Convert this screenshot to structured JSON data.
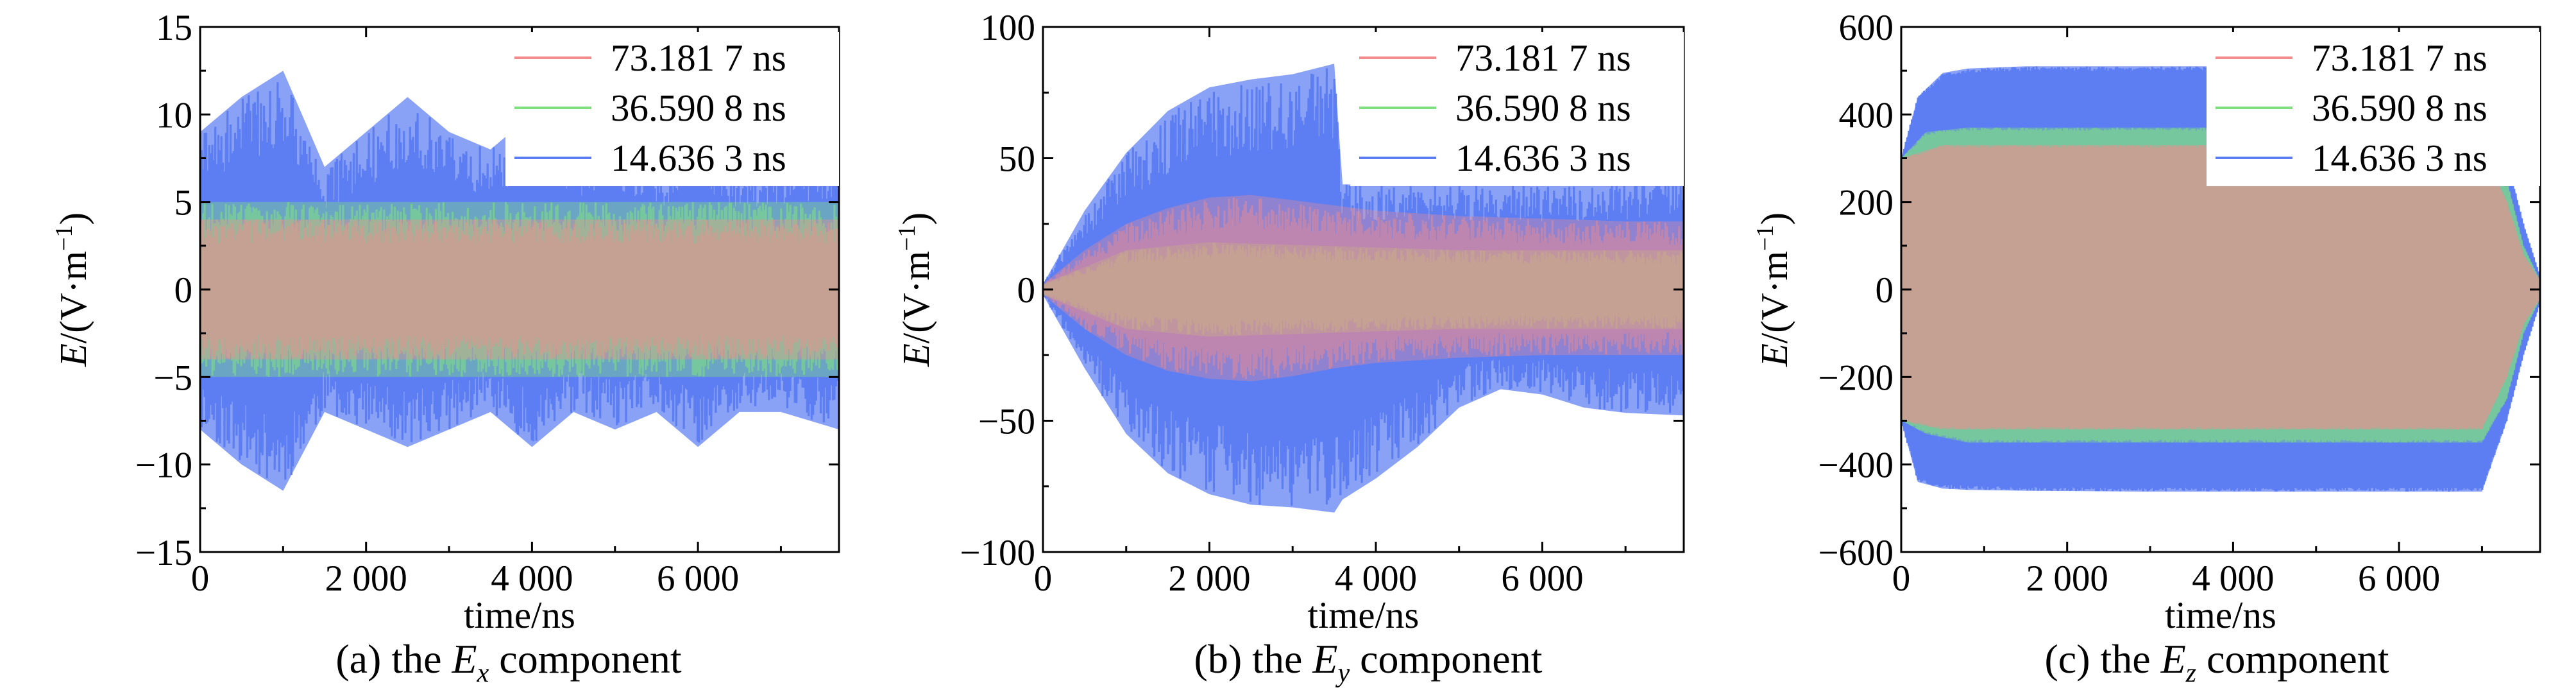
{
  "chart_data": [
    {
      "type": "line",
      "caption": {
        "prefix": "(a) the ",
        "var": "E",
        "sub": "x",
        "suffix": " component"
      },
      "xlabel": "time/ns",
      "ylabel": {
        "var": "E",
        "rest": "/(V·m",
        "sup": "−1",
        "close": ")"
      },
      "xlim": [
        0,
        7700
      ],
      "ylim": [
        -15,
        15
      ],
      "xticks": [
        0,
        2000,
        4000,
        6000
      ],
      "xtick_labels": [
        "0",
        "2 000",
        "4 000",
        "6 000"
      ],
      "yticks": [
        -15,
        -10,
        -5,
        0,
        5,
        10,
        15
      ],
      "ytick_labels": [
        "−15",
        "−10",
        "−5",
        "0",
        "5",
        "10",
        "15"
      ],
      "legend_position": "top-right",
      "series": [
        {
          "name": "14.636 3 ns",
          "color": "#5b7cf3",
          "x": [
            0,
            500,
            1000,
            1500,
            2000,
            2500,
            3000,
            3500,
            4000,
            4500,
            5000,
            5500,
            6000,
            6500,
            7000,
            7700
          ],
          "upper": [
            9,
            11,
            12.5,
            7,
            9,
            11,
            9,
            8,
            10,
            8,
            9,
            7,
            9,
            7,
            7,
            8
          ],
          "lower": [
            -8,
            -10,
            -11.5,
            -7,
            -8,
            -9,
            -8,
            -7,
            -9,
            -7,
            -8,
            -7,
            -9,
            -7,
            -7,
            -8
          ]
        },
        {
          "name": "36.590 8 ns",
          "color": "#7fe07f",
          "x": [
            0,
            1000,
            2000,
            3000,
            4000,
            5000,
            6000,
            7000,
            7700
          ],
          "upper": [
            5,
            5,
            5,
            5,
            5,
            5,
            5,
            5,
            5
          ],
          "lower": [
            -5,
            -5,
            -5,
            -5,
            -5,
            -5,
            -5,
            -5,
            -5
          ]
        },
        {
          "name": "73.181 7 ns",
          "color": "#f28c8c",
          "x": [
            0,
            1000,
            2000,
            3000,
            4000,
            5000,
            6000,
            7000,
            7700
          ],
          "upper": [
            4,
            4,
            4,
            4,
            4,
            4,
            4,
            4,
            4
          ],
          "lower": [
            -4,
            -4,
            -4,
            -4,
            -4,
            -4,
            -4,
            -4,
            -4
          ]
        }
      ]
    },
    {
      "type": "line",
      "caption": {
        "prefix": "(b) the ",
        "var": "E",
        "sub": "y",
        "suffix": " component"
      },
      "xlabel": "time/ns",
      "ylabel": {
        "var": "E",
        "rest": "/(V·m",
        "sup": "−1",
        "close": ")"
      },
      "xlim": [
        0,
        7700
      ],
      "ylim": [
        -100,
        100
      ],
      "xticks": [
        0,
        2000,
        4000,
        6000
      ],
      "xtick_labels": [
        "0",
        "2 000",
        "4 000",
        "6 000"
      ],
      "yticks": [
        -100,
        -50,
        0,
        50,
        100
      ],
      "ytick_labels": [
        "−100",
        "−50",
        "0",
        "50",
        "100"
      ],
      "legend_position": "top-right",
      "series": [
        {
          "name": "14.636 3 ns",
          "color": "#5b7cf3",
          "x": [
            0,
            500,
            1000,
            1500,
            2000,
            2500,
            3000,
            3500,
            3600,
            4000,
            4500,
            5000,
            5500,
            6000,
            6500,
            7000,
            7700
          ],
          "upper": [
            2,
            30,
            52,
            68,
            77,
            80,
            82,
            86,
            40,
            40,
            40,
            40,
            40,
            40,
            40,
            40,
            45
          ],
          "lower": [
            -2,
            -30,
            -55,
            -70,
            -78,
            -82,
            -83,
            -85,
            -80,
            -72,
            -60,
            -45,
            -38,
            -40,
            -45,
            -47,
            -48
          ]
        },
        {
          "name": "36.590 8 ns",
          "color": "#7fe07f",
          "x": [
            0,
            1000,
            2000,
            3000,
            4000,
            5000,
            6000,
            7000,
            7700
          ],
          "upper": [
            2,
            15,
            18,
            17,
            16,
            15,
            15,
            15,
            15
          ],
          "lower": [
            -2,
            -15,
            -18,
            -17,
            -16,
            -15,
            -15,
            -15,
            -15
          ]
        },
        {
          "name": "73.181 7 ns",
          "color": "#f28c8c",
          "x": [
            0,
            500,
            1000,
            1500,
            2000,
            2500,
            3000,
            3500,
            4000,
            5000,
            6000,
            7000,
            7700
          ],
          "upper": [
            2,
            15,
            25,
            31,
            35,
            36,
            34,
            32,
            30,
            28,
            27,
            26,
            26
          ],
          "lower": [
            -2,
            -15,
            -25,
            -31,
            -34,
            -35,
            -33,
            -30,
            -28,
            -26,
            -25,
            -25,
            -25
          ]
        }
      ]
    },
    {
      "type": "line",
      "caption": {
        "prefix": "(c) the ",
        "var": "E",
        "sub": "z",
        "suffix": " component"
      },
      "xlabel": "time/ns",
      "ylabel": {
        "var": "E",
        "rest": "/(V·m",
        "sup": "−1",
        "close": ")"
      },
      "xlim": [
        0,
        7700
      ],
      "ylim": [
        -600,
        600
      ],
      "xticks": [
        0,
        2000,
        4000,
        6000
      ],
      "xtick_labels": [
        "0",
        "2 000",
        "4 000",
        "6 000"
      ],
      "yticks": [
        -600,
        -400,
        -200,
        0,
        200,
        400,
        600
      ],
      "ytick_labels": [
        "−600",
        "−400",
        "−200",
        "0",
        "200",
        "400",
        "600"
      ],
      "legend_position": "top-right",
      "series": [
        {
          "name": "14.636 3 ns",
          "color": "#5b7cf3",
          "x": [
            0,
            200,
            500,
            800,
            1500,
            3000,
            5000,
            7000,
            7300,
            7500,
            7700
          ],
          "upper": [
            300,
            440,
            495,
            505,
            510,
            510,
            510,
            505,
            300,
            150,
            30
          ],
          "lower": [
            -300,
            -440,
            -455,
            -458,
            -460,
            -462,
            -462,
            -462,
            -300,
            -150,
            -30
          ]
        },
        {
          "name": "36.590 8 ns",
          "color": "#7fe07f",
          "x": [
            0,
            300,
            800,
            3000,
            5000,
            7000,
            7300,
            7500,
            7700
          ],
          "upper": [
            300,
            360,
            370,
            370,
            370,
            370,
            250,
            100,
            20
          ],
          "lower": [
            -300,
            -330,
            -350,
            -350,
            -350,
            -350,
            -250,
            -100,
            -20
          ]
        },
        {
          "name": "73.181 7 ns",
          "color": "#f28c8c",
          "x": [
            0,
            500,
            3000,
            5000,
            7000,
            7300,
            7500,
            7700
          ],
          "upper": [
            300,
            330,
            330,
            330,
            330,
            200,
            80,
            20
          ],
          "lower": [
            -300,
            -320,
            -320,
            -320,
            -320,
            -200,
            -80,
            -20
          ]
        }
      ]
    }
  ]
}
